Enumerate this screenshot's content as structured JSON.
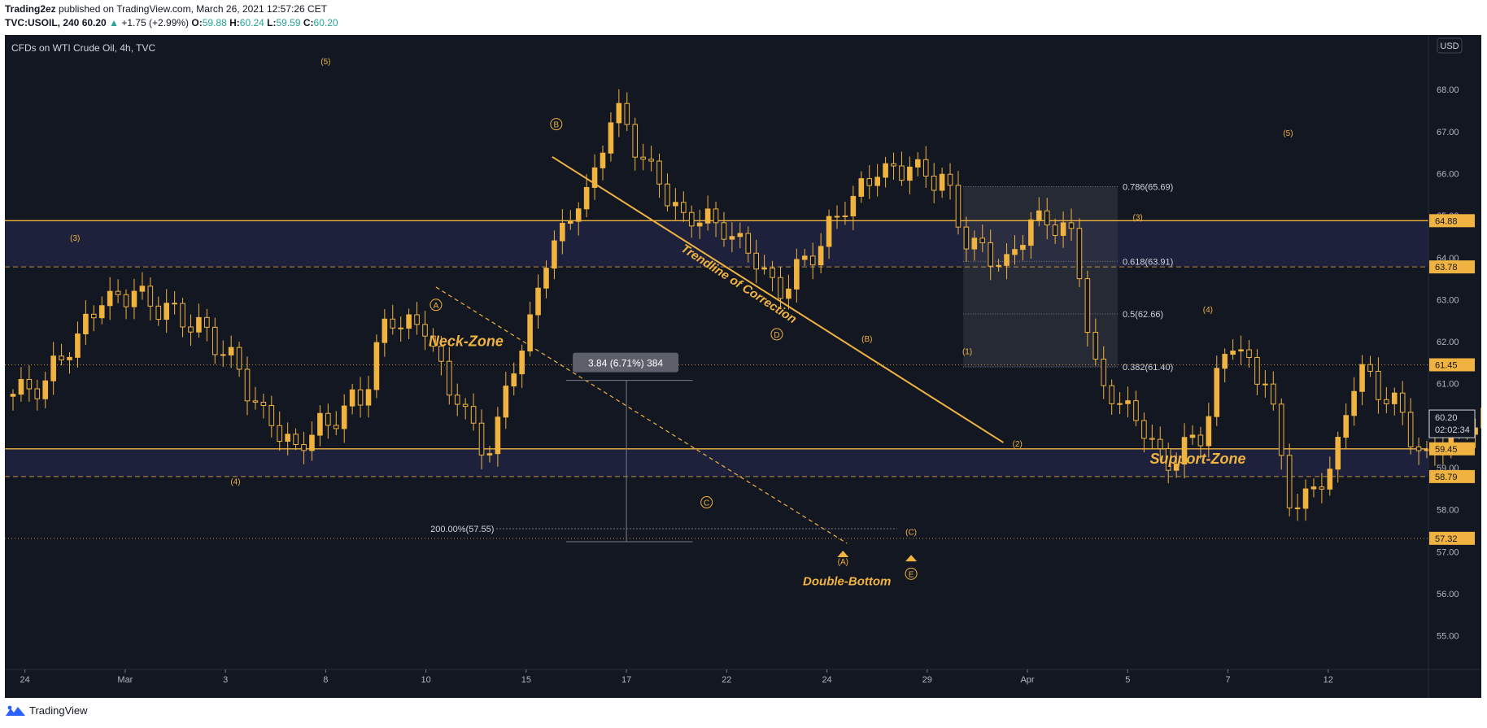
{
  "header": {
    "author": "Trading2ez",
    "published_text": "published on TradingView.com, March 26, 2021 12:57:26 CET",
    "symbol": "TVC:USOIL, 240",
    "last": "60.20",
    "change": "+1.75 (+2.99%)",
    "o_label": "O:",
    "o": "59.88",
    "h_label": "H:",
    "h": "60.24",
    "l_label": "L:",
    "l": "59.59",
    "c_label": "C:",
    "c": "60.20"
  },
  "legend_title": "CFDs on WTI Crude Oil, 4h, TVC",
  "currency_badge": "USD",
  "footer_brand": "TradingView",
  "colors": {
    "bg": "#131722",
    "candle": "#f0b340",
    "annot": "#f0b340",
    "zone": "#262a52",
    "axis_text": "#b2b5be",
    "grid": "#2a2e39"
  },
  "chart_data": {
    "type": "candlestick",
    "price_axis": {
      "min": 54.2,
      "max": 69.3,
      "ticks": [
        55,
        56,
        57,
        58,
        59,
        60,
        61,
        62,
        63,
        64,
        65,
        66,
        67,
        68
      ]
    },
    "price_tick_labels": [
      "55.00",
      "56.00",
      "57.00",
      "58.00",
      "59.00",
      "60.00",
      "61.00",
      "62.00",
      "63.00",
      "64.00",
      "65.00",
      "66.00",
      "67.00",
      "68.00"
    ],
    "time_axis": {
      "labels": [
        "24",
        "Mar",
        "3",
        "8",
        "10",
        "15",
        "17",
        "22",
        "24",
        "29",
        "Apr",
        "5",
        "7",
        "12"
      ],
      "positions": [
        0,
        5,
        10,
        15,
        20,
        25,
        30,
        35,
        40,
        45,
        50,
        55,
        60,
        65
      ],
      "range": [
        -1,
        70
      ]
    },
    "candles_close": [
      60.9,
      61.8,
      62.9,
      63.1,
      62.7,
      62.3,
      61.6,
      60.3,
      59.5,
      60.1,
      60.7,
      62.6,
      62.4,
      60.7,
      59.4,
      61.7,
      64.2,
      65.4,
      67.4,
      66.1,
      65.0,
      64.9,
      64.3,
      63.3,
      64.1,
      65.2,
      66.0,
      66.1,
      65.8,
      64.2,
      63.8,
      64.9,
      64.6,
      61.0,
      60.3,
      59.2,
      59.8,
      62.0,
      61.1,
      58.0,
      58.8,
      61.2,
      60.5,
      59.2,
      59.9,
      60.2
    ],
    "price_labels": [
      {
        "value": 64.88,
        "text": "64.88",
        "style": "filled"
      },
      {
        "value": 63.78,
        "text": "63.78",
        "style": "filled"
      },
      {
        "value": 61.45,
        "text": "61.45",
        "style": "filled"
      },
      {
        "value": 60.2,
        "text": "60.20",
        "style": "current"
      },
      {
        "value": 59.45,
        "text": "59.45",
        "style": "filled"
      },
      {
        "value": 58.79,
        "text": "58.79",
        "style": "filled"
      },
      {
        "value": 57.32,
        "text": "57.32",
        "style": "filled"
      }
    ],
    "countdown": "02:02:34",
    "horizontal_lines": [
      {
        "value": 64.88,
        "style": "solid"
      },
      {
        "value": 63.78,
        "style": "dashed"
      },
      {
        "value": 61.45,
        "style": "dotted"
      },
      {
        "value": 59.45,
        "style": "solid"
      },
      {
        "value": 58.79,
        "style": "dashed"
      },
      {
        "value": 57.32,
        "style": "dotted"
      }
    ],
    "zones": [
      {
        "name": "Neck-Zone",
        "from": 63.78,
        "to": 64.88
      },
      {
        "name": "Support-Zone",
        "from": 58.79,
        "to": 59.45
      }
    ],
    "fib_levels": [
      {
        "value": 65.69,
        "text": "0.786(65.69)"
      },
      {
        "value": 63.91,
        "text": "0.618(63.91)"
      },
      {
        "value": 62.66,
        "text": "0.5(62.66)"
      },
      {
        "value": 61.4,
        "text": "0.382(61.40)"
      }
    ],
    "measure_label": "3.84 (6.71%) 384",
    "extension_label": "200.00%(57.55)",
    "text_annotations": [
      {
        "text": "Neck-Zone",
        "x": 22,
        "y": 61.9
      },
      {
        "text": "Support-Zone",
        "x": 58.5,
        "y": 59.1
      },
      {
        "text": "Double-Bottom",
        "x": 41,
        "y": 56.2
      },
      {
        "text": "Trendline of Correction",
        "x": 35.5,
        "y": 63.3
      }
    ],
    "wave_labels": [
      {
        "text": "(5)",
        "x": 15,
        "y": 68.6,
        "circled": false
      },
      {
        "text": "(3)",
        "x": 2.5,
        "y": 64.4,
        "circled": false
      },
      {
        "text": "(4)",
        "x": 10.5,
        "y": 58.6,
        "circled": false
      },
      {
        "text": "B",
        "x": 26.5,
        "y": 67.1,
        "circled": true
      },
      {
        "text": "A",
        "x": 20.5,
        "y": 62.8,
        "circled": true
      },
      {
        "text": "C",
        "x": 34,
        "y": 58.1,
        "circled": true
      },
      {
        "text": "D",
        "x": 37.5,
        "y": 62.1,
        "circled": true
      },
      {
        "text": "(B)",
        "x": 42,
        "y": 62.0,
        "circled": false
      },
      {
        "text": "(A)",
        "x": 40.8,
        "y": 56.7,
        "circled": false
      },
      {
        "text": "(C)",
        "x": 44.2,
        "y": 57.4,
        "circled": false
      },
      {
        "text": "E",
        "x": 44.2,
        "y": 56.4,
        "circled": true
      },
      {
        "text": "(1)",
        "x": 47,
        "y": 61.7,
        "circled": false
      },
      {
        "text": "(2)",
        "x": 49.5,
        "y": 59.5,
        "circled": false
      },
      {
        "text": "(3)",
        "x": 55.5,
        "y": 64.9,
        "circled": false
      },
      {
        "text": "(4)",
        "x": 59,
        "y": 62.7,
        "circled": false
      },
      {
        "text": "(5)",
        "x": 63,
        "y": 66.9,
        "circled": false
      }
    ],
    "trendline": {
      "from": [
        26.3,
        66.4
      ],
      "to": [
        48.8,
        59.6
      ]
    },
    "dashed_line": {
      "from": [
        20.5,
        63.3
      ],
      "to": [
        41,
        57.2
      ]
    }
  }
}
